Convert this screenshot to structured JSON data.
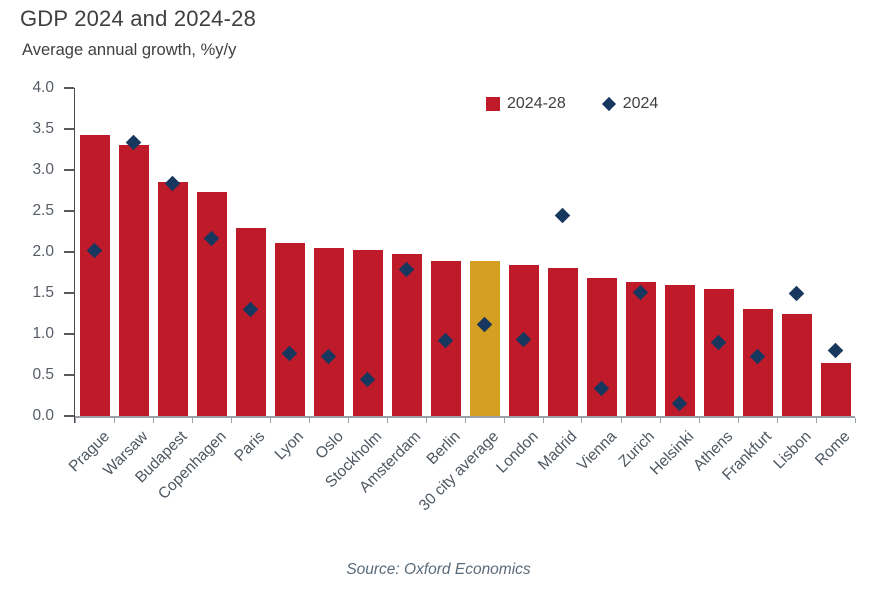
{
  "header": {
    "title": "GDP 2024 and 2024-28",
    "subtitle": "Average annual growth, %y/y"
  },
  "legend": [
    {
      "label": "2024-28",
      "swatch": "square",
      "color": "#bf1a2a"
    },
    {
      "label": "2024",
      "swatch": "diamond",
      "color": "#17375e"
    }
  ],
  "source": {
    "text": "Source: Oxford Economics"
  },
  "colors": {
    "bar": "#bf1a2a",
    "bar_highlight": "#d5a021",
    "marker": "#17375e",
    "y_axis": "#4a4a4a",
    "x_axis": "#9aa0a6",
    "title_text": "#3f3f3f",
    "tick_label": "#565d66"
  },
  "chart_data": {
    "type": "bar",
    "title": "GDP 2024 and 2024-28",
    "subtitle": "Average annual growth, %y/y",
    "ylabel": "Average annual growth, %y/y",
    "ylim": [
      0.0,
      4.0
    ],
    "ytick_step": 0.5,
    "grid": false,
    "legend_position": "top-inside",
    "source": "Source: Oxford Economics",
    "categories": [
      "Prague",
      "Warsaw",
      "Budapest",
      "Copenhagen",
      "Paris",
      "Lyon",
      "Oslo",
      "Stockholm",
      "Amsterdam",
      "Berlin",
      "30 city average",
      "London",
      "Madrid",
      "Vienna",
      "Zurich",
      "Helsinki",
      "Athens",
      "Frankfurt",
      "Lisbon",
      "Rome"
    ],
    "highlight_category": "30 city average",
    "highlight_index": 10,
    "series": [
      {
        "name": "2024-28",
        "type": "bar",
        "values": [
          3.43,
          3.3,
          2.85,
          2.73,
          2.29,
          2.11,
          2.05,
          2.02,
          1.97,
          1.89,
          1.89,
          1.84,
          1.8,
          1.68,
          1.63,
          1.6,
          1.55,
          1.31,
          1.25,
          0.65
        ]
      },
      {
        "name": "2024",
        "type": "scatter",
        "values": [
          2.02,
          3.33,
          2.84,
          2.16,
          1.3,
          0.76,
          0.73,
          0.44,
          1.79,
          0.92,
          1.12,
          0.93,
          2.44,
          0.33,
          1.51,
          0.15,
          0.9,
          0.73,
          1.5,
          0.8
        ]
      }
    ]
  }
}
